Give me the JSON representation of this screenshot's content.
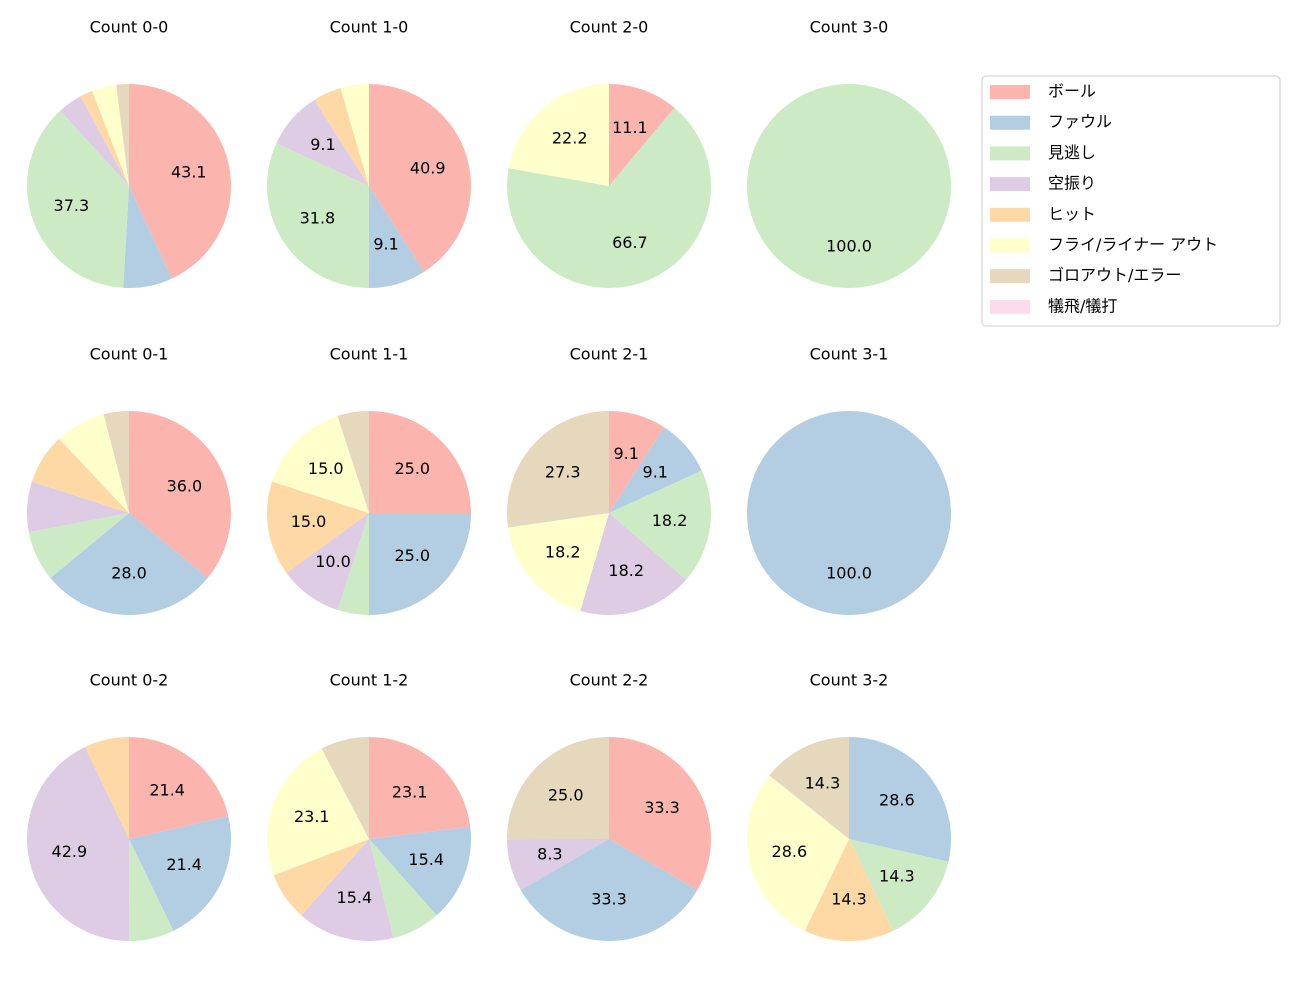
{
  "chart_data": [
    {
      "type": "pie",
      "title": "Count 0-0",
      "categories": [
        "ボール",
        "ファウル",
        "見逃し",
        "空振り",
        "ヒット",
        "フライ/ライナー アウト",
        "ゴロアウト/エラー",
        "犠飛/犠打"
      ],
      "colors": [
        "#fbb4ae",
        "#b3cde3",
        "#ccebc5",
        "#decbe4",
        "#fed9a6",
        "#ffffcc",
        "#e5d8bd",
        "#fddaec"
      ],
      "values": [
        43.1,
        7.8,
        37.3,
        3.9,
        2.0,
        3.9,
        2.0,
        0
      ],
      "value_labels": [
        "43.1",
        null,
        "37.3",
        null,
        null,
        null,
        null,
        null
      ]
    },
    {
      "type": "pie",
      "title": "Count 1-0",
      "categories": [
        "ボール",
        "ファウル",
        "見逃し",
        "空振り",
        "ヒット",
        "フライ/ライナー アウト",
        "ゴロアウト/エラー",
        "犠飛/犠打"
      ],
      "colors": [
        "#fbb4ae",
        "#b3cde3",
        "#ccebc5",
        "#decbe4",
        "#fed9a6",
        "#ffffcc",
        "#e5d8bd",
        "#fddaec"
      ],
      "values": [
        40.9,
        9.1,
        31.8,
        9.1,
        4.5,
        4.5,
        0,
        0
      ],
      "value_labels": [
        "40.9",
        "9.1",
        "31.8",
        "9.1",
        null,
        null,
        null,
        null
      ]
    },
    {
      "type": "pie",
      "title": "Count 2-0",
      "categories": [
        "ボール",
        "ファウル",
        "見逃し",
        "空振り",
        "ヒット",
        "フライ/ライナー アウト",
        "ゴロアウト/エラー",
        "犠飛/犠打"
      ],
      "colors": [
        "#fbb4ae",
        "#b3cde3",
        "#ccebc5",
        "#decbe4",
        "#fed9a6",
        "#ffffcc",
        "#e5d8bd",
        "#fddaec"
      ],
      "values": [
        11.1,
        0,
        66.7,
        0,
        0,
        22.2,
        0,
        0
      ],
      "value_labels": [
        "11.1",
        null,
        "66.7",
        null,
        null,
        "22.2",
        null,
        null
      ]
    },
    {
      "type": "pie",
      "title": "Count 3-0",
      "categories": [
        "ボール",
        "ファウル",
        "見逃し",
        "空振り",
        "ヒット",
        "フライ/ライナー アウト",
        "ゴロアウト/エラー",
        "犠飛/犠打"
      ],
      "colors": [
        "#fbb4ae",
        "#b3cde3",
        "#ccebc5",
        "#decbe4",
        "#fed9a6",
        "#ffffcc",
        "#e5d8bd",
        "#fddaec"
      ],
      "values": [
        0,
        0,
        100,
        0,
        0,
        0,
        0,
        0
      ],
      "value_labels": [
        null,
        null,
        "100.0",
        null,
        null,
        null,
        null,
        null
      ]
    },
    {
      "type": "pie",
      "title": "Count 0-1",
      "categories": [
        "ボール",
        "ファウル",
        "見逃し",
        "空振り",
        "ヒット",
        "フライ/ライナー アウト",
        "ゴロアウト/エラー",
        "犠飛/犠打"
      ],
      "colors": [
        "#fbb4ae",
        "#b3cde3",
        "#ccebc5",
        "#decbe4",
        "#fed9a6",
        "#ffffcc",
        "#e5d8bd",
        "#fddaec"
      ],
      "values": [
        36.0,
        28.0,
        8,
        8,
        8,
        8,
        4,
        0
      ],
      "value_labels": [
        "36.0",
        "28.0",
        null,
        null,
        null,
        null,
        null,
        null
      ]
    },
    {
      "type": "pie",
      "title": "Count 1-1",
      "categories": [
        "ボール",
        "ファウル",
        "見逃し",
        "空振り",
        "ヒット",
        "フライ/ライナー アウト",
        "ゴロアウト/エラー",
        "犠飛/犠打"
      ],
      "colors": [
        "#fbb4ae",
        "#b3cde3",
        "#ccebc5",
        "#decbe4",
        "#fed9a6",
        "#ffffcc",
        "#e5d8bd",
        "#fddaec"
      ],
      "values": [
        25.0,
        25.0,
        5,
        10.0,
        15.0,
        15.0,
        5,
        0
      ],
      "value_labels": [
        "25.0",
        "25.0",
        null,
        "10.0",
        "15.0",
        "15.0",
        null,
        null
      ]
    },
    {
      "type": "pie",
      "title": "Count 2-1",
      "categories": [
        "ボール",
        "ファウル",
        "見逃し",
        "空振り",
        "ヒット",
        "フライ/ライナー アウト",
        "ゴロアウト/エラー",
        "犠飛/犠打"
      ],
      "colors": [
        "#fbb4ae",
        "#b3cde3",
        "#ccebc5",
        "#decbe4",
        "#fed9a6",
        "#ffffcc",
        "#e5d8bd",
        "#fddaec"
      ],
      "values": [
        9.1,
        9.1,
        18.2,
        18.2,
        0,
        18.2,
        27.3,
        0
      ],
      "value_labels": [
        "9.1",
        "9.1",
        "18.2",
        "18.2",
        null,
        "18.2",
        "27.3",
        null
      ]
    },
    {
      "type": "pie",
      "title": "Count 3-1",
      "categories": [
        "ボール",
        "ファウル",
        "見逃し",
        "空振り",
        "ヒット",
        "フライ/ライナー アウト",
        "ゴロアウト/エラー",
        "犠飛/犠打"
      ],
      "colors": [
        "#fbb4ae",
        "#b3cde3",
        "#ccebc5",
        "#decbe4",
        "#fed9a6",
        "#ffffcc",
        "#e5d8bd",
        "#fddaec"
      ],
      "values": [
        0,
        100,
        0,
        0,
        0,
        0,
        0,
        0
      ],
      "value_labels": [
        null,
        "100.0",
        null,
        null,
        null,
        null,
        null,
        null
      ]
    },
    {
      "type": "pie",
      "title": "Count 0-2",
      "categories": [
        "ボール",
        "ファウル",
        "見逃し",
        "空振り",
        "ヒット",
        "フライ/ライナー アウト",
        "ゴロアウト/エラー",
        "犠飛/犠打"
      ],
      "colors": [
        "#fbb4ae",
        "#b3cde3",
        "#ccebc5",
        "#decbe4",
        "#fed9a6",
        "#ffffcc",
        "#e5d8bd",
        "#fddaec"
      ],
      "values": [
        21.4,
        21.4,
        7.1,
        42.9,
        7.1,
        0,
        0,
        0
      ],
      "value_labels": [
        "21.4",
        "21.4",
        null,
        "42.9",
        null,
        null,
        null,
        null
      ]
    },
    {
      "type": "pie",
      "title": "Count 1-2",
      "categories": [
        "ボール",
        "ファウル",
        "見逃し",
        "空振り",
        "ヒット",
        "フライ/ライナー アウト",
        "ゴロアウト/エラー",
        "犠飛/犠打"
      ],
      "colors": [
        "#fbb4ae",
        "#b3cde3",
        "#ccebc5",
        "#decbe4",
        "#fed9a6",
        "#ffffcc",
        "#e5d8bd",
        "#fddaec"
      ],
      "values": [
        23.1,
        15.4,
        7.7,
        15.4,
        7.7,
        23.1,
        7.7,
        0
      ],
      "value_labels": [
        "23.1",
        "15.4",
        null,
        "15.4",
        null,
        "23.1",
        null,
        null
      ]
    },
    {
      "type": "pie",
      "title": "Count 2-2",
      "categories": [
        "ボール",
        "ファウル",
        "見逃し",
        "空振り",
        "ヒット",
        "フライ/ライナー アウト",
        "ゴロアウト/エラー",
        "犠飛/犠打"
      ],
      "colors": [
        "#fbb4ae",
        "#b3cde3",
        "#ccebc5",
        "#decbe4",
        "#fed9a6",
        "#ffffcc",
        "#e5d8bd",
        "#fddaec"
      ],
      "values": [
        33.3,
        33.3,
        0,
        8.3,
        0,
        0,
        25.0,
        0
      ],
      "value_labels": [
        "33.3",
        "33.3",
        null,
        "8.3",
        null,
        null,
        "25.0",
        null
      ]
    },
    {
      "type": "pie",
      "title": "Count 3-2",
      "categories": [
        "ボール",
        "ファウル",
        "見逃し",
        "空振り",
        "ヒット",
        "フライ/ライナー アウト",
        "ゴロアウト/エラー",
        "犠飛/犠打"
      ],
      "colors": [
        "#fbb4ae",
        "#b3cde3",
        "#ccebc5",
        "#decbe4",
        "#fed9a6",
        "#ffffcc",
        "#e5d8bd",
        "#fddaec"
      ],
      "values": [
        0,
        28.6,
        14.3,
        0,
        14.3,
        28.6,
        14.3,
        0
      ],
      "value_labels": [
        null,
        "28.6",
        "14.3",
        null,
        "14.3",
        "28.6",
        "14.3",
        null
      ]
    }
  ]
}
